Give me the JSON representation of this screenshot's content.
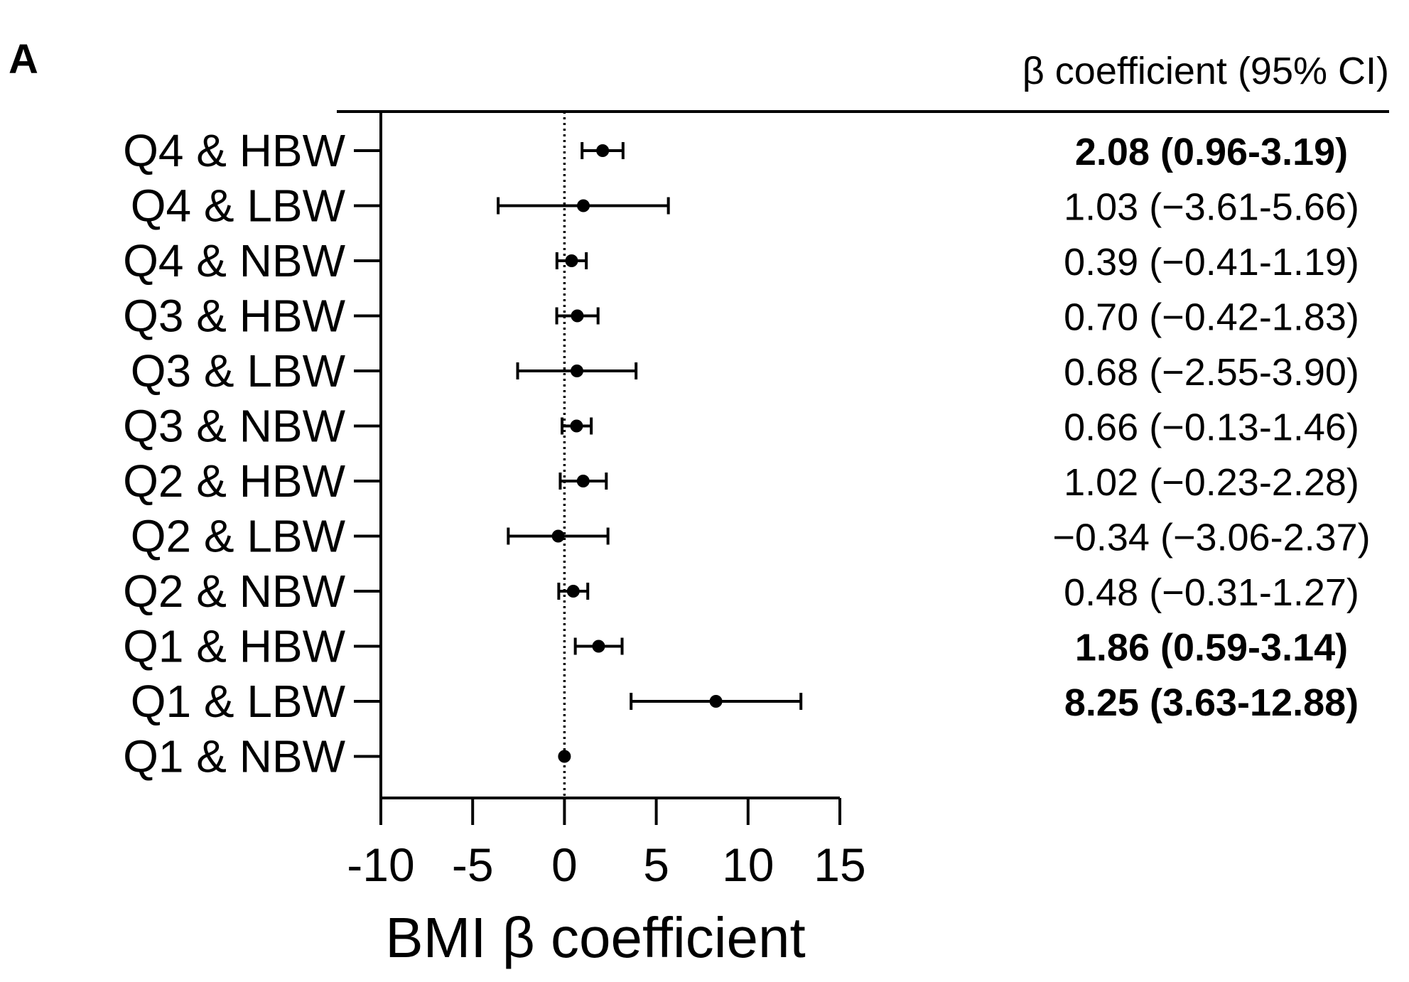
{
  "panel_label": "A",
  "table_header": "β coefficient (95% CI)",
  "chart_data": {
    "type": "forest",
    "xlabel": "BMI β coefficient",
    "xlim": [
      -10,
      15
    ],
    "x_ticks": [
      -10,
      -5,
      0,
      5,
      10,
      15
    ],
    "x_tick_labels": [
      "-10",
      "-5",
      "0",
      "5",
      "10",
      "15"
    ],
    "reference_line": 0,
    "rows": [
      {
        "label": "Q4 & HBW",
        "beta": 2.08,
        "low": 0.96,
        "high": 3.19,
        "ci_text": "2.08 (0.96-3.19)",
        "bold": true
      },
      {
        "label": "Q4 & LBW",
        "beta": 1.03,
        "low": -3.61,
        "high": 5.66,
        "ci_text": "1.03 (−3.61-5.66)",
        "bold": false
      },
      {
        "label": "Q4 & NBW",
        "beta": 0.39,
        "low": -0.41,
        "high": 1.19,
        "ci_text": "0.39 (−0.41-1.19)",
        "bold": false
      },
      {
        "label": "Q3 & HBW",
        "beta": 0.7,
        "low": -0.42,
        "high": 1.83,
        "ci_text": "0.70 (−0.42-1.83)",
        "bold": false
      },
      {
        "label": "Q3 & LBW",
        "beta": 0.68,
        "low": -2.55,
        "high": 3.9,
        "ci_text": "0.68 (−2.55-3.90)",
        "bold": false
      },
      {
        "label": "Q3 & NBW",
        "beta": 0.66,
        "low": -0.13,
        "high": 1.46,
        "ci_text": "0.66 (−0.13-1.46)",
        "bold": false
      },
      {
        "label": "Q2 & HBW",
        "beta": 1.02,
        "low": -0.23,
        "high": 2.28,
        "ci_text": "1.02 (−0.23-2.28)",
        "bold": false
      },
      {
        "label": "Q2 & LBW",
        "beta": -0.34,
        "low": -3.06,
        "high": 2.37,
        "ci_text": "−0.34 (−3.06-2.37)",
        "bold": false
      },
      {
        "label": "Q2 & NBW",
        "beta": 0.48,
        "low": -0.31,
        "high": 1.27,
        "ci_text": "0.48 (−0.31-1.27)",
        "bold": false
      },
      {
        "label": "Q1 & HBW",
        "beta": 1.86,
        "low": 0.59,
        "high": 3.14,
        "ci_text": "1.86 (0.59-3.14)",
        "bold": true
      },
      {
        "label": "Q1 & LBW",
        "beta": 8.25,
        "low": 3.63,
        "high": 12.88,
        "ci_text": "8.25 (3.63-12.88)",
        "bold": true
      },
      {
        "label": "Q1 & NBW",
        "beta": 0,
        "low": 0,
        "high": 0,
        "ci_text": "",
        "bold": false
      }
    ]
  }
}
